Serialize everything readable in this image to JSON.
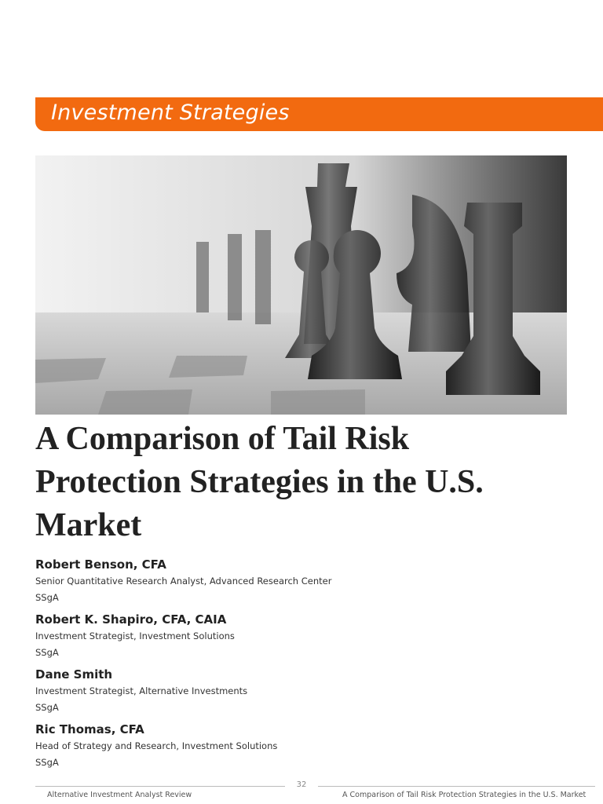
{
  "header": {
    "section": "Investment Strategies"
  },
  "article": {
    "title": "A Comparison of Tail Risk Protection Strategies in the U.S. Market",
    "authors": [
      {
        "name": "Robert Benson, CFA",
        "role": "Senior Quantitative Research Analyst, Advanced Research Center",
        "organization": "SSgA"
      },
      {
        "name": "Robert K. Shapiro, CFA, CAIA",
        "role": "Investment Strategist, Investment Solutions",
        "organization": "SSgA"
      },
      {
        "name": "Dane Smith",
        "role": "Investment Strategist, Alternative Investments",
        "organization": "SSgA"
      },
      {
        "name": "Ric Thomas, CFA",
        "role": "Head of Strategy and Research, Investment Solutions",
        "organization": "SSgA"
      }
    ]
  },
  "footer": {
    "page": 32,
    "left": "Alternative Investment Analyst Review",
    "right": "A Comparison of Tail Risk Protection Strategies in the U.S. Market"
  }
}
